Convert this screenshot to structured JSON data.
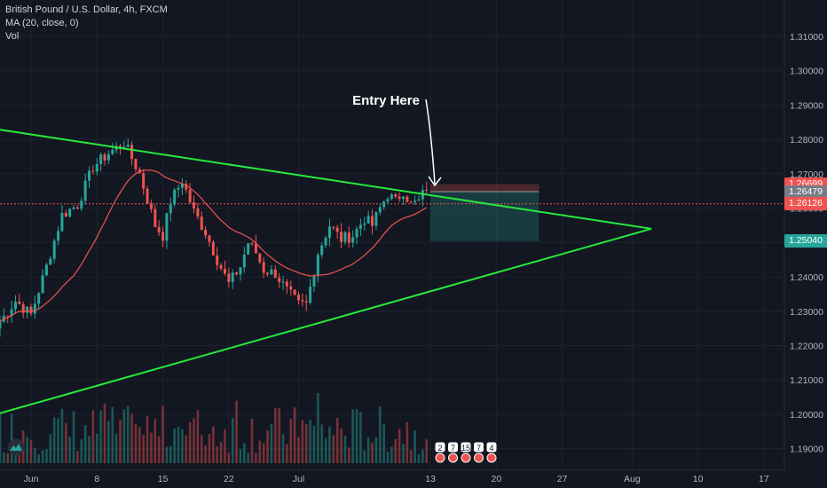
{
  "header": {
    "symbol_line": "British Pound / U.S. Dollar, 4h, FXCM",
    "indicator_ma": "MA (20, close, 0)",
    "indicator_vol": "Vol"
  },
  "annotation": {
    "text": "Entry Here"
  },
  "colors": {
    "background": "#131722",
    "grid": "#1e2230",
    "up_candle": "#26a69a",
    "down_candle": "#ef5350",
    "ma_line": "#ef5350",
    "trendline": "#27e83d",
    "stop_zone": "rgba(239,83,80,0.25)",
    "target_zone": "rgba(38,166,154,0.25)",
    "label_red": "#ef5350",
    "label_grey": "#787b86",
    "label_green": "#26a69a"
  },
  "price_tags": [
    {
      "value": "1.26699",
      "price": 1.26699,
      "color": "#ef5350"
    },
    {
      "value": "1.26479",
      "price": 1.26479,
      "color": "#787b86"
    },
    {
      "value": "1.26126",
      "price": 1.26126,
      "color": "#ef5350"
    },
    {
      "value": "1.25040",
      "price": 1.2504,
      "color": "#26a69a"
    }
  ],
  "events": [
    "2",
    "7",
    "15",
    "7",
    "4"
  ],
  "chart_data": {
    "type": "candlestick",
    "y_axis": {
      "range": [
        1.185,
        1.318
      ],
      "ticks": [
        "1.31000",
        "1.30000",
        "1.29000",
        "1.28000",
        "1.27000",
        "1.26000",
        "1.25000",
        "1.24000",
        "1.23000",
        "1.22000",
        "1.21000",
        "1.20000",
        "1.19000"
      ],
      "tick_values": [
        1.31,
        1.3,
        1.29,
        1.28,
        1.27,
        1.26,
        1.25,
        1.24,
        1.23,
        1.22,
        1.21,
        1.2,
        1.19
      ]
    },
    "x_axis": {
      "ticks": [
        "Jun",
        "8",
        "15",
        "22",
        "Jul",
        "13",
        "20",
        "27",
        "Aug",
        "10",
        "17"
      ],
      "tick_bar_index": [
        8,
        25,
        42,
        59,
        77,
        111,
        128,
        145,
        163,
        180,
        197
      ]
    },
    "price_path": [
      [
        0,
        1.227
      ],
      [
        4,
        1.233
      ],
      [
        8,
        1.229
      ],
      [
        12,
        1.243
      ],
      [
        16,
        1.258
      ],
      [
        20,
        1.261
      ],
      [
        24,
        1.272
      ],
      [
        28,
        1.276
      ],
      [
        32,
        1.279
      ],
      [
        36,
        1.27
      ],
      [
        40,
        1.255
      ],
      [
        42,
        1.252
      ],
      [
        44,
        1.262
      ],
      [
        47,
        1.268
      ],
      [
        50,
        1.259
      ],
      [
        53,
        1.253
      ],
      [
        56,
        1.245
      ],
      [
        59,
        1.238
      ],
      [
        62,
        1.243
      ],
      [
        64,
        1.25
      ],
      [
        66,
        1.247
      ],
      [
        68,
        1.242
      ],
      [
        71,
        1.241
      ],
      [
        74,
        1.236
      ],
      [
        77,
        1.232
      ],
      [
        79,
        1.232
      ],
      [
        82,
        1.247
      ],
      [
        85,
        1.255
      ],
      [
        88,
        1.251
      ],
      [
        91,
        1.252
      ],
      [
        94,
        1.257
      ],
      [
        96,
        1.255
      ],
      [
        98,
        1.26
      ],
      [
        100,
        1.264
      ],
      [
        102,
        1.262
      ],
      [
        104,
        1.265
      ],
      [
        106,
        1.261
      ],
      [
        108,
        1.262
      ],
      [
        110,
        1.266
      ]
    ],
    "volume_bar_count": 111,
    "ma_period": 20,
    "trendlines": [
      {
        "name": "upper",
        "from": [
          -1,
          1.283
        ],
        "to": [
          168,
          1.254
        ]
      },
      {
        "name": "lower",
        "from": [
          -1,
          1.2
        ],
        "to": [
          168,
          1.254
        ]
      }
    ],
    "position": {
      "type": "long",
      "entry": 1.26479,
      "stop": 1.26699,
      "target": 1.2504,
      "from_bar": 111,
      "to_bar": 139
    }
  }
}
